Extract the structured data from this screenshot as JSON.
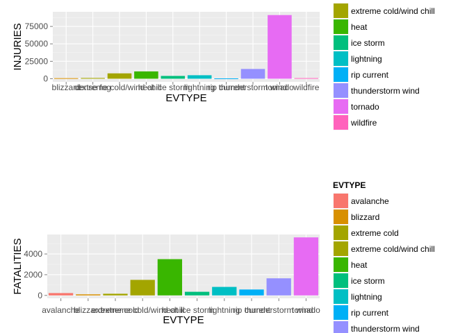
{
  "colors": {
    "panel": "#ebebeb",
    "grid_major": "#ffffff",
    "legend_key_bg": "#f2f2f2"
  },
  "palette": {
    "avalanche": "#f8766d",
    "blizzard": "#d89000",
    "dense fog": "#d89000",
    "extreme cold": "#a3a500",
    "extreme cold/wind chill": "#a3a500",
    "heat": "#39b600",
    "ice storm": "#00bf7d",
    "lightning": "#00bfc4",
    "rip current": "#00b0f6",
    "thunderstorm wind": "#9590ff",
    "tornado": "#e76bf3",
    "wildfire": "#ff62bc"
  },
  "chart_data": [
    {
      "type": "bar",
      "categories": [
        "blizzard",
        "dense fog",
        "extreme cold/wind chill",
        "heat",
        "ice storm",
        "lightning",
        "rip current",
        "thunderstorm wind",
        "tornado",
        "wildfire"
      ],
      "values": [
        805,
        1077,
        7700,
        10500,
        4000,
        5000,
        500,
        14000,
        91300,
        900
      ],
      "fill_keys": [
        "blizzard",
        "extreme cold",
        "extreme cold/wind chill",
        "heat",
        "ice storm",
        "lightning",
        "rip current",
        "thunderstorm wind",
        "tornado",
        "wildfire"
      ],
      "xlabel": "EVTYPE",
      "ylabel": "INJURIES",
      "yticks": [
        0,
        25000,
        50000,
        75000
      ],
      "ytick_labels": [
        "0",
        "25000",
        "50000",
        "75000"
      ],
      "ylim": [
        -4500,
        96000
      ],
      "grid": true,
      "legend": {
        "title": "",
        "position": "right",
        "entries": [
          "extreme cold/wind chill",
          "heat",
          "ice storm",
          "lightning",
          "rip current",
          "thunderstorm wind",
          "tornado",
          "wildfire"
        ],
        "fill_keys": [
          "extreme cold",
          "heat",
          "ice storm",
          "lightning",
          "rip current",
          "thunderstorm wind",
          "tornado",
          "wildfire"
        ]
      }
    },
    {
      "type": "bar",
      "categories": [
        "avalanche",
        "blizzard",
        "extreme cold",
        "extreme cold/wind chill",
        "heat",
        "ice storm",
        "lightning",
        "rip current",
        "thunderstorm wind",
        "tornado"
      ],
      "values": [
        225,
        101,
        160,
        1500,
        3500,
        350,
        820,
        570,
        1650,
        5600
      ],
      "fill_keys": [
        "avalanche",
        "blizzard",
        "extreme cold",
        "extreme cold/wind chill",
        "heat",
        "ice storm",
        "lightning",
        "rip current",
        "thunderstorm wind",
        "tornado"
      ],
      "xlabel": "EVTYPE",
      "ylabel": "FATALITIES",
      "yticks": [
        0,
        2000,
        4000
      ],
      "ytick_labels": [
        "0",
        "2000",
        "4000"
      ],
      "ylim": [
        -280,
        5880
      ],
      "grid": true,
      "legend": {
        "title": "EVTYPE",
        "position": "right",
        "entries": [
          "avalanche",
          "blizzard",
          "extreme cold",
          "extreme cold/wind chill",
          "heat",
          "ice storm",
          "lightning",
          "rip current",
          "thunderstorm wind"
        ],
        "fill_keys": [
          "avalanche",
          "blizzard",
          "extreme cold",
          "extreme cold/wind chill",
          "heat",
          "ice storm",
          "lightning",
          "rip current",
          "thunderstorm wind"
        ]
      }
    }
  ]
}
